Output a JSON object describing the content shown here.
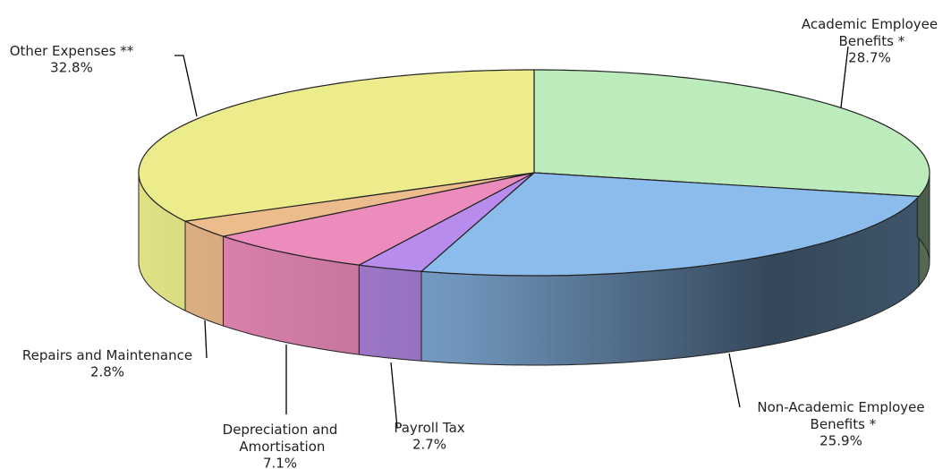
{
  "chart_data": {
    "type": "pie3d",
    "categories": [
      "Academic Employee Benefits *",
      "Non-Academic Employee Benefits *",
      "Payroll Tax",
      "Depreciation and Amortisation",
      "Repairs and Maintenance",
      "Other Expenses **"
    ],
    "values": [
      28.7,
      25.9,
      2.7,
      7.1,
      2.8,
      32.8
    ],
    "value_labels": [
      "28.7%",
      "25.9%",
      "2.7%",
      "7.1%",
      "2.8%",
      "32.8%"
    ],
    "colors": [
      "#bcecbc",
      "#8cbcec",
      "#b88cec",
      "#ec8cbc",
      "#ecbc8c",
      "#ecec8c"
    ]
  }
}
